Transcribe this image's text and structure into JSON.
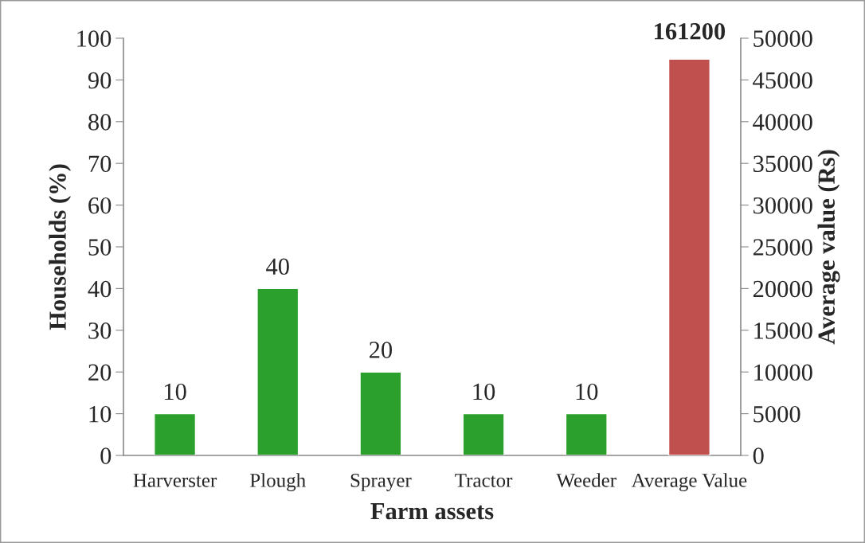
{
  "chart_data": {
    "type": "bar",
    "xlabel": "Farm assets",
    "ylabel": "Households (%)",
    "y2label": "Average value (Rs)",
    "categories": [
      "Harverster",
      "Plough",
      "Sprayer",
      "Tractor",
      "Weeder",
      "Average Value"
    ],
    "series": [
      {
        "color": "#2ca02c",
        "values": [
          10,
          40,
          20,
          10,
          10,
          null
        ],
        "value_labels": [
          "10",
          "40",
          "20",
          "10",
          "10",
          null
        ]
      },
      {
        "axis": "y2",
        "color": "#c0504d",
        "values": [
          null,
          null,
          null,
          null,
          null,
          47500
        ]
      }
    ],
    "ylim": [
      0,
      100
    ],
    "yticks": [
      0,
      10,
      20,
      30,
      40,
      50,
      60,
      70,
      80,
      90,
      100
    ],
    "y2lim": [
      0,
      50000
    ],
    "y2ticks": [
      0,
      5000,
      10000,
      15000,
      20000,
      25000,
      30000,
      35000,
      40000,
      45000,
      50000
    ],
    "annotations": [
      "161200"
    ],
    "grid": false,
    "legend": false
  }
}
